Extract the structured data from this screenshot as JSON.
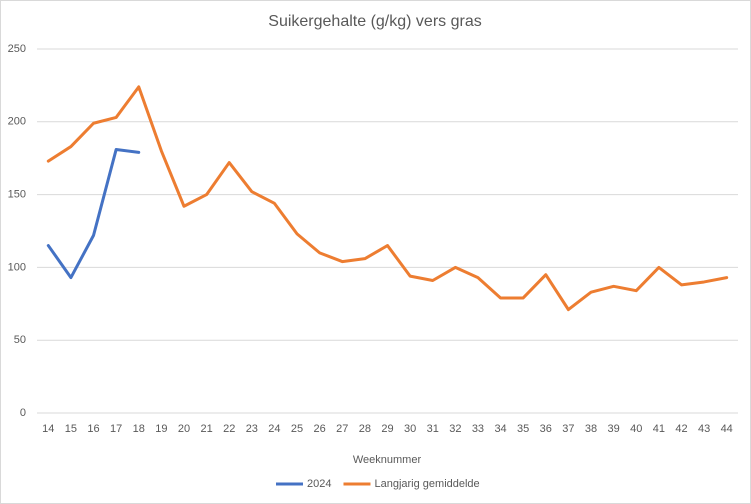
{
  "chart_data": {
    "type": "line",
    "title": "Suikergehalte (g/kg) vers gras",
    "x_label": "Weeknummer",
    "categories": [
      "14",
      "15",
      "16",
      "17",
      "18",
      "19",
      "20",
      "21",
      "22",
      "23",
      "24",
      "25",
      "26",
      "27",
      "28",
      "29",
      "30",
      "31",
      "32",
      "33",
      "34",
      "35",
      "36",
      "37",
      "38",
      "39",
      "40",
      "41",
      "42",
      "43",
      "44"
    ],
    "series": [
      {
        "name": "2024",
        "color": "#4472c4",
        "values": [
          115,
          93,
          122,
          181,
          179,
          null,
          null,
          null,
          null,
          null,
          null,
          null,
          null,
          null,
          null,
          null,
          null,
          null,
          null,
          null,
          null,
          null,
          null,
          null,
          null,
          null,
          null,
          null,
          null,
          null,
          null
        ]
      },
      {
        "name": "Langjarig gemiddelde",
        "color": "#ed7d31",
        "values": [
          173,
          183,
          199,
          203,
          224,
          180,
          142,
          150,
          172,
          152,
          144,
          123,
          110,
          104,
          106,
          115,
          94,
          91,
          100,
          93,
          79,
          79,
          95,
          71,
          83,
          87,
          84,
          100,
          88,
          90,
          93
        ]
      }
    ],
    "ylim": [
      0,
      250
    ],
    "yticks": [
      0,
      50,
      100,
      150,
      200,
      250
    ],
    "grid": true,
    "legend": "bottom"
  }
}
